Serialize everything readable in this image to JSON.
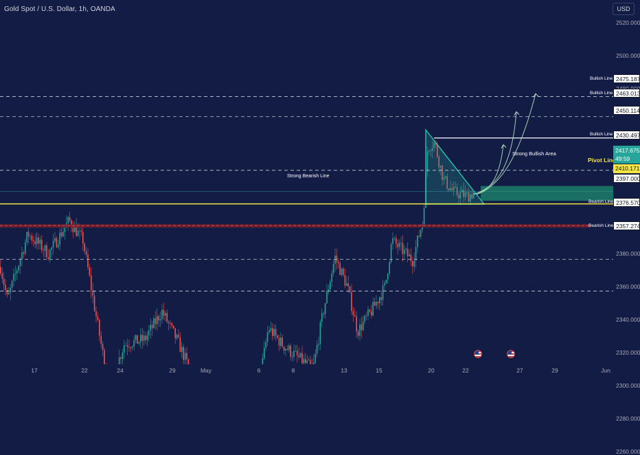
{
  "symbol": {
    "title": "Gold Spot / U.S. Dollar, 1h, OANDA"
  },
  "toolbar": {
    "currency": "USD"
  },
  "price_axis": {
    "ticks": [
      "2520.000",
      "2500.000",
      "2480.000",
      "2440.000",
      "2380.000",
      "2360.000",
      "2340.000",
      "2320.000",
      "2300.000",
      "2280.000",
      "2260.000"
    ],
    "tick_values": [
      2520,
      2500,
      2480,
      2440,
      2380,
      2360,
      2340,
      2320,
      2300,
      2280,
      2260
    ]
  },
  "time_axis": {
    "labels": [
      "17",
      "22",
      "24",
      "29",
      "May",
      "6",
      "8",
      "13",
      "15",
      "20",
      "22",
      "27",
      "29",
      "Jun"
    ]
  },
  "levels": {
    "bullish": [
      {
        "label": "Bullish Line",
        "price": "2475.187",
        "value": 2475.187
      },
      {
        "label": "Bullish Line",
        "price": "2463.013",
        "value": 2463.013
      },
      {
        "label": "Bullish Line",
        "price": "2430.497",
        "value": 2430.497
      }
    ],
    "resistance_price": "2450.114",
    "resistance_value": 2450.114,
    "pivot": {
      "label": "Pivot Line",
      "price": "2410.171",
      "value": 2410.171
    },
    "strong_bearish": {
      "label": "Strong Bearish Line",
      "price": "2397.000",
      "value": 2397.0
    },
    "bearish": [
      {
        "label": "Bearish Line",
        "price": "2376.570",
        "value": 2376.57
      },
      {
        "label": "Bearish Line",
        "price": "2357.274",
        "value": 2357.274
      }
    ],
    "strong_bullish_area": {
      "label": "Strong Bullish Area",
      "from": 2412,
      "to": 2421
    }
  },
  "current": {
    "price": "2417.675",
    "countdown": "49:59",
    "value": 2417.675
  },
  "colors": {
    "up": "#26a69a",
    "down": "#ef5350",
    "pivot": "#f4e542",
    "bearish_strong": "#c23b3b",
    "background": "#131c45",
    "grid_dash": "#c8ccd8"
  },
  "icons": [
    "calendar-us-flag-icon",
    "calendar-us-flag-icon"
  ]
}
